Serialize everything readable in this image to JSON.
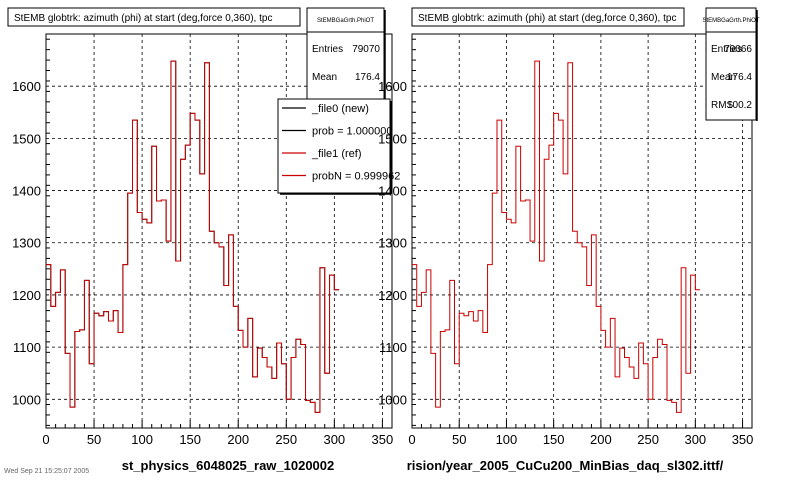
{
  "footer": "Wed Sep 21 15:25:07 2005",
  "chart_data": [
    {
      "type": "line",
      "title": "StEMB globtrk: azimuth (phi) at start (deg,force 0,360), tpc",
      "xlabel": "st_physics_6048025_raw_1020002",
      "xlim": [
        0,
        360
      ],
      "ylim": [
        945,
        1700
      ],
      "x_ticks": [
        0,
        50,
        100,
        150,
        200,
        250,
        300,
        350
      ],
      "y_ticks": [
        1000,
        1100,
        1200,
        1300,
        1400,
        1500,
        1600
      ],
      "grid": true,
      "stats": {
        "header": "StEMBGaGrth.PhiOT",
        "rows": [
          {
            "label": "Entries",
            "value": "79070"
          },
          {
            "label": "Mean",
            "value": "176.4"
          }
        ]
      },
      "legend": {
        "placement": "top-right",
        "entries": [
          {
            "label": "_file0 (new)",
            "color": "#000000"
          },
          {
            "label": "prob = 1.000000",
            "color": "#000000"
          },
          {
            "label": "_file1 (ref)",
            "color": "#cc0000"
          },
          {
            "label": "probN = 0.999962",
            "color": "#cc0000"
          }
        ]
      },
      "bin_width": 5,
      "series": [
        {
          "name": "_file0 (new)",
          "color": "#000000",
          "values": [
            1258,
            1178,
            1205,
            1248,
            1088,
            985,
            1130,
            1133,
            1228,
            1068,
            1165,
            1160,
            1168,
            1150,
            1170,
            1128,
            1258,
            1395,
            1535,
            1358,
            1345,
            1338,
            1485,
            1380,
            1382,
            1303,
            1648,
            1265,
            1460,
            1487,
            1548,
            1535,
            1432,
            1645,
            1322,
            1300,
            1292,
            1218,
            1315,
            1178,
            1132,
            1100,
            1155,
            1043,
            1098,
            1080,
            1062,
            1040,
            1108,
            1068,
            1000,
            1080,
            1115,
            1105,
            998,
            994,
            975,
            1252,
            1050,
            1238,
            1210
          ]
        },
        {
          "name": "_file1 (ref)",
          "color": "#cc0000",
          "values": [
            1258,
            1178,
            1205,
            1248,
            1088,
            985,
            1130,
            1133,
            1228,
            1068,
            1165,
            1160,
            1168,
            1150,
            1170,
            1128,
            1258,
            1395,
            1535,
            1358,
            1345,
            1338,
            1485,
            1380,
            1382,
            1303,
            1648,
            1265,
            1460,
            1487,
            1548,
            1535,
            1432,
            1645,
            1322,
            1300,
            1292,
            1218,
            1315,
            1178,
            1132,
            1100,
            1155,
            1043,
            1098,
            1080,
            1062,
            1040,
            1108,
            1068,
            1000,
            1080,
            1115,
            1105,
            998,
            994,
            975,
            1252,
            1050,
            1238,
            1210
          ]
        }
      ]
    },
    {
      "type": "line",
      "title": "StEMB globtrk: azimuth (phi) at start (deg,force 0,360), tpc",
      "xlabel": "rision/year_2005_CuCu200_MinBias_daq_sl302.ittf/",
      "xlim": [
        0,
        360
      ],
      "ylim": [
        945,
        1700
      ],
      "x_ticks": [
        0,
        50,
        100,
        150,
        200,
        250,
        300,
        350
      ],
      "y_ticks": [
        1000,
        1100,
        1200,
        1300,
        1400,
        1500,
        1600
      ],
      "grid": true,
      "stats": {
        "header": "StEMBGaGrth.PhiOT",
        "rows": [
          {
            "label": "Entries",
            "value": "79066"
          },
          {
            "label": "Mean",
            "value": "176.4"
          },
          {
            "label": "RMS",
            "value": "100.2"
          }
        ]
      },
      "bin_width": 5,
      "series": [
        {
          "name": "",
          "color": "#cc0000",
          "values": [
            1258,
            1178,
            1205,
            1248,
            1088,
            985,
            1130,
            1133,
            1228,
            1068,
            1165,
            1160,
            1168,
            1150,
            1170,
            1128,
            1258,
            1395,
            1535,
            1358,
            1345,
            1338,
            1485,
            1380,
            1382,
            1303,
            1648,
            1265,
            1460,
            1487,
            1548,
            1535,
            1432,
            1645,
            1322,
            1300,
            1292,
            1218,
            1315,
            1178,
            1132,
            1100,
            1155,
            1043,
            1098,
            1080,
            1062,
            1040,
            1108,
            1068,
            1000,
            1080,
            1115,
            1105,
            998,
            994,
            975,
            1252,
            1050,
            1238,
            1210
          ]
        }
      ]
    }
  ]
}
